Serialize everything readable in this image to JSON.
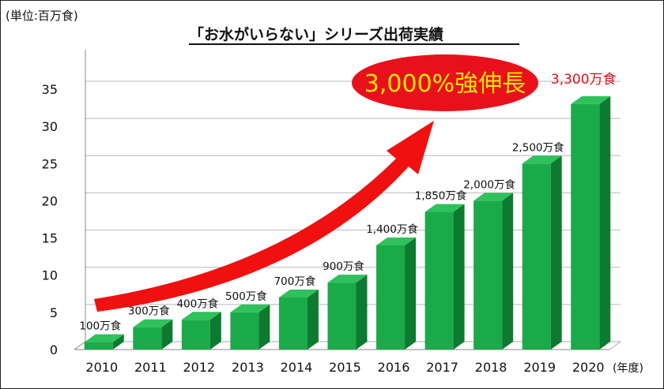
{
  "chart_data": {
    "type": "bar",
    "title": "「お水がいらない」シリーズ出荷実績",
    "unit_label": "(単位:百万食)",
    "x_unit_label": "(年度)",
    "categories": [
      "2010",
      "2011",
      "2012",
      "2013",
      "2014",
      "2015",
      "2016",
      "2017",
      "2018",
      "2019",
      "2020"
    ],
    "values": [
      1,
      3,
      4,
      5,
      7,
      9,
      14,
      18.5,
      20,
      25,
      33
    ],
    "data_labels": [
      "100万食",
      "300万食",
      "400万食",
      "500万食",
      "700万食",
      "900万食",
      "1,400万食",
      "1,850万食",
      "2,000万食",
      "2,500万食",
      "3,300万食"
    ],
    "highlight_label_color": "#e8101a",
    "yticks": [
      0,
      5,
      10,
      15,
      20,
      25,
      30,
      35
    ],
    "ylim": [
      0,
      35
    ],
    "grid": true,
    "bar_color": "#1aaa4a",
    "bar_side_color": "#0d7a30",
    "bar_top_color": "#2fc25c",
    "annotation": {
      "text": "3,000%強伸長",
      "text_color": "#ffe600",
      "fill_color": "#e8101a",
      "arrow_color": "#f01010"
    }
  }
}
